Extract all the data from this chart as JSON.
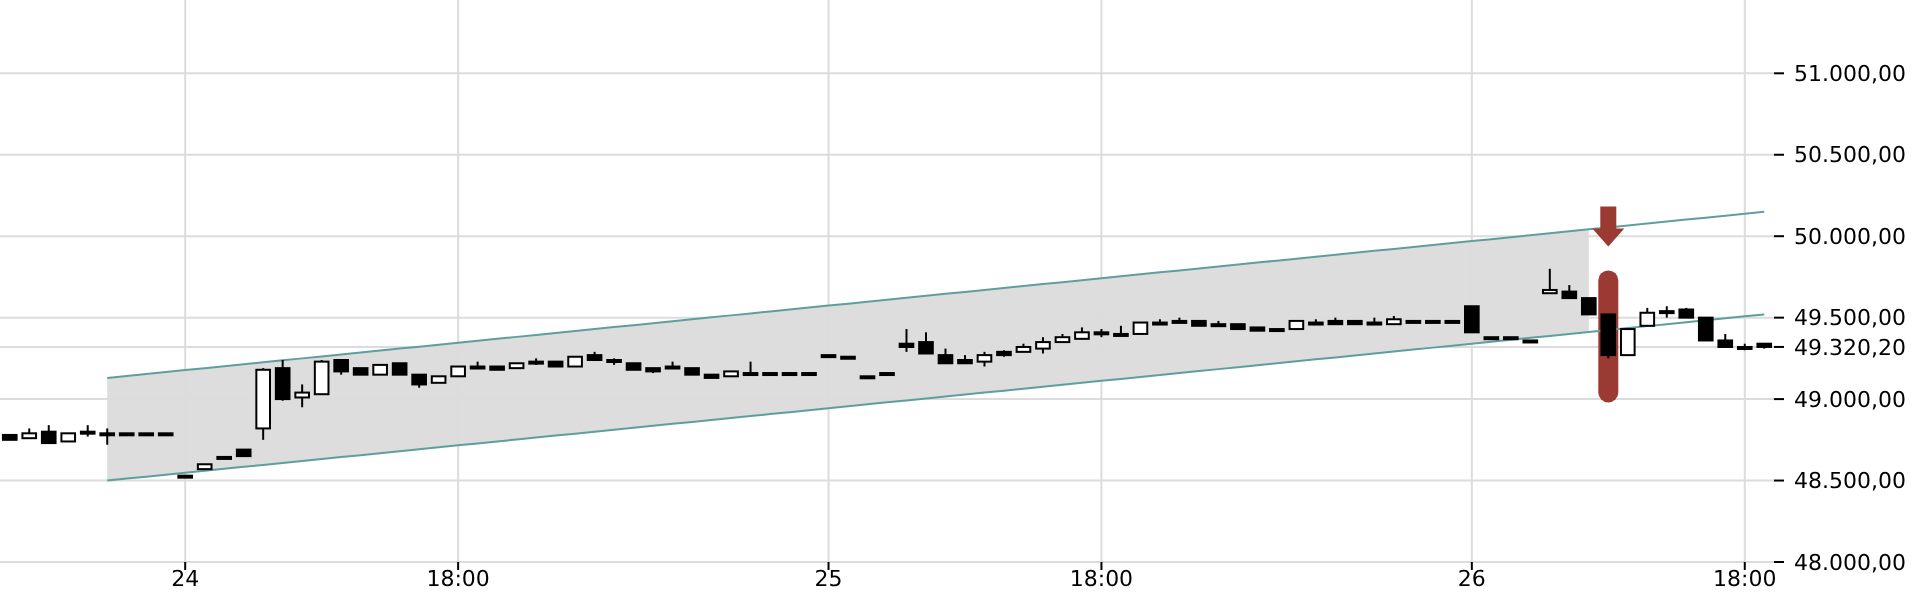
{
  "chart_data": {
    "type": "candlestick",
    "categories": [
      null,
      null,
      null,
      null,
      null,
      null,
      null,
      null,
      null,
      "24",
      null,
      null,
      null,
      null,
      null,
      null,
      null,
      null,
      null,
      null,
      null,
      null,
      null,
      "18:00",
      null,
      null,
      null,
      null,
      null,
      null,
      null,
      null,
      null,
      null,
      null,
      null,
      null,
      null,
      null,
      null,
      null,
      null,
      "25",
      null,
      null,
      null,
      null,
      null,
      null,
      null,
      null,
      null,
      null,
      null,
      null,
      null,
      "18:00",
      null,
      null,
      null,
      null,
      null,
      null,
      null,
      null,
      null,
      null,
      null,
      null,
      null,
      null,
      null,
      null,
      null,
      null,
      "26",
      null,
      null,
      null,
      null,
      null,
      null,
      null,
      null,
      null,
      null,
      null,
      null,
      null,
      "18:00",
      null
    ],
    "ylim": [
      48000,
      51450
    ],
    "yticks": [
      {
        "value": 48000,
        "label": "48.000,00"
      },
      {
        "value": 48500,
        "label": "48.500,00"
      },
      {
        "value": 49000,
        "label": "49.000,00"
      },
      {
        "value": 49320.2,
        "label": "49.320,20"
      },
      {
        "value": 49500,
        "label": "49.500,00"
      },
      {
        "value": 50000,
        "label": "50.000,00"
      },
      {
        "value": 50500,
        "label": "50.500,00"
      },
      {
        "value": 51000,
        "label": "51.000,00"
      }
    ],
    "grid": true,
    "series": [
      {
        "type": "line",
        "color": "#5f9ea0",
        "values": [
          null,
          null,
          null,
          null,
          null,
          49130,
          49142,
          49154,
          49166,
          49178,
          49190,
          49202,
          49214,
          49226,
          49238,
          49250,
          49262,
          49274,
          49286,
          49298,
          49310,
          49322,
          49334,
          49346,
          49358,
          49370,
          49382,
          49394,
          49406,
          49418,
          49430,
          49442,
          49454,
          49466,
          49478,
          49490,
          49502,
          49514,
          49526,
          49538,
          49550,
          49562,
          49574,
          49586,
          49598,
          49610,
          49622,
          49634,
          49646,
          49658,
          49670,
          49682,
          49694,
          49706,
          49718,
          49730,
          49742,
          49754,
          49766,
          49778,
          49790,
          49802,
          49814,
          49826,
          49838,
          49850,
          49862,
          49874,
          49886,
          49898,
          49910,
          49922,
          49934,
          49946,
          49958,
          49970,
          49982,
          49994,
          50006,
          50018,
          50030,
          50042,
          50054,
          50066,
          50078,
          50090,
          50102,
          50114,
          50126,
          50138,
          50150
        ],
        "upper": [
          null,
          null,
          null,
          null,
          null,
          49130,
          49142,
          49154,
          49166,
          49178,
          49190,
          49202,
          49214,
          49226,
          49238,
          49250,
          49262,
          49274,
          49286,
          49298,
          49310,
          49322,
          49334,
          49346,
          49358,
          49370,
          49382,
          49394,
          49406,
          49418,
          49430,
          49442,
          49454,
          49466,
          49478,
          49490,
          49502,
          49514,
          49526,
          49538,
          49550,
          49562,
          49574,
          49586,
          49598,
          49610,
          49622,
          49634,
          49646,
          49658,
          49670,
          49682,
          49694,
          49706,
          49718,
          49730,
          49742,
          49754,
          49766,
          49778,
          49790,
          49802,
          49814,
          49826,
          49838,
          49850,
          49862,
          49874,
          49886,
          49898,
          49910,
          49922,
          49934,
          49946,
          49958,
          49970,
          49982,
          49994,
          50006,
          50018,
          50030,
          50042,
          null,
          null,
          null,
          null,
          null,
          null,
          null,
          null,
          null
        ],
        "lower": [
          null,
          null,
          null,
          null,
          null,
          48500,
          48512,
          48524,
          48536,
          48548,
          48560,
          48572,
          48584,
          48596,
          48608,
          48620,
          48632,
          48644,
          48656,
          48668,
          48680,
          48692,
          48704,
          48716,
          48728,
          48740,
          48752,
          48764,
          48776,
          48788,
          48800,
          48812,
          48824,
          48836,
          48848,
          48860,
          48872,
          48884,
          48896,
          48908,
          48920,
          48932,
          48944,
          48956,
          48968,
          48980,
          48992,
          49004,
          49016,
          49028,
          49040,
          49052,
          49064,
          49076,
          49088,
          49100,
          49112,
          49124,
          49136,
          49148,
          49160,
          49172,
          49184,
          49196,
          49208,
          49220,
          49232,
          49244,
          49256,
          49268,
          49280,
          49292,
          49304,
          49316,
          49328,
          49340,
          49352,
          49364,
          49376,
          49388,
          49400,
          49412,
          null,
          null,
          null,
          null,
          null,
          null,
          null,
          null,
          null
        ]
      },
      {
        "type": "line",
        "color": "#5f9ea0",
        "values": [
          null,
          null,
          null,
          null,
          null,
          48500,
          48512,
          48524,
          48536,
          48548,
          48560,
          48572,
          48584,
          48596,
          48608,
          48620,
          48632,
          48644,
          48656,
          48668,
          48680,
          48692,
          48704,
          48716,
          48728,
          48740,
          48752,
          48764,
          48776,
          48788,
          48800,
          48812,
          48824,
          48836,
          48848,
          48860,
          48872,
          48884,
          48896,
          48908,
          48920,
          48932,
          48944,
          48956,
          48968,
          48980,
          48992,
          49004,
          49016,
          49028,
          49040,
          49052,
          49064,
          49076,
          49088,
          49100,
          49112,
          49124,
          49136,
          49148,
          49160,
          49172,
          49184,
          49196,
          49208,
          49220,
          49232,
          49244,
          49256,
          49268,
          49280,
          49292,
          49304,
          49316,
          49328,
          49340,
          49352,
          49364,
          49376,
          49388,
          49400,
          49412,
          49424,
          49436,
          49448,
          49460,
          49472,
          49484,
          49496,
          49508,
          49520
        ]
      },
      {
        "color": "#000000",
        "ohlc": [
          [
            48780,
            48780,
            48750,
            48750
          ],
          [
            48760,
            48820,
            48760,
            48790
          ],
          [
            48800,
            48840,
            48730,
            48730
          ],
          [
            48740,
            48790,
            48740,
            48790
          ],
          [
            48800,
            48840,
            48770,
            48800
          ],
          [
            48790,
            48820,
            48720,
            48780
          ],
          [
            48790,
            48790,
            48790,
            48790
          ],
          [
            48790,
            48790,
            48790,
            48790
          ],
          [
            48790,
            48790,
            48790,
            48790
          ],
          [
            48530,
            48530,
            48530,
            48530
          ],
          [
            48570,
            48600,
            48570,
            48600
          ],
          [
            48645,
            48645,
            48645,
            48645
          ],
          [
            48690,
            48690,
            48650,
            48650
          ],
          [
            48820,
            49190,
            48750,
            49180
          ],
          [
            49190,
            49240,
            48990,
            49000
          ],
          [
            49010,
            49090,
            48950,
            49040
          ],
          [
            49030,
            49240,
            49030,
            49230
          ],
          [
            49240,
            49240,
            49150,
            49170
          ],
          [
            49190,
            49190,
            49150,
            49150
          ],
          [
            49150,
            49210,
            49150,
            49210
          ],
          [
            49220,
            49220,
            49150,
            49150
          ],
          [
            49150,
            49150,
            49070,
            49090
          ],
          [
            49100,
            49140,
            49100,
            49140
          ],
          [
            49140,
            49200,
            49140,
            49200
          ],
          [
            49200,
            49230,
            49200,
            49200
          ],
          [
            49200,
            49200,
            49180,
            49180
          ],
          [
            49190,
            49220,
            49190,
            49220
          ],
          [
            49230,
            49250,
            49210,
            49220
          ],
          [
            49230,
            49230,
            49200,
            49200
          ],
          [
            49200,
            49260,
            49200,
            49260
          ],
          [
            49270,
            49290,
            49240,
            49240
          ],
          [
            49240,
            49250,
            49210,
            49230
          ],
          [
            49220,
            49220,
            49180,
            49180
          ],
          [
            49190,
            49190,
            49160,
            49170
          ],
          [
            49200,
            49230,
            49200,
            49200
          ],
          [
            49190,
            49190,
            49150,
            49150
          ],
          [
            49150,
            49150,
            49130,
            49130
          ],
          [
            49140,
            49170,
            49140,
            49170
          ],
          [
            49160,
            49230,
            49160,
            49160
          ],
          [
            49160,
            49160,
            49160,
            49160
          ],
          [
            49160,
            49160,
            49160,
            49160
          ],
          [
            49160,
            49160,
            49160,
            49160
          ],
          [
            49270,
            49270,
            49270,
            49270
          ],
          [
            49260,
            49260,
            49260,
            49260
          ],
          [
            49140,
            49140,
            49140,
            49140
          ],
          [
            49160,
            49160,
            49160,
            49160
          ],
          [
            49340,
            49430,
            49290,
            49320
          ],
          [
            49350,
            49410,
            49280,
            49280
          ],
          [
            49270,
            49310,
            49220,
            49220
          ],
          [
            49240,
            49270,
            49220,
            49220
          ],
          [
            49230,
            49290,
            49200,
            49270
          ],
          [
            49290,
            49300,
            49260,
            49270
          ],
          [
            49290,
            49340,
            49290,
            49320
          ],
          [
            49310,
            49380,
            49280,
            49350
          ],
          [
            49350,
            49400,
            49350,
            49380
          ],
          [
            49370,
            49440,
            49370,
            49410
          ],
          [
            49400,
            49430,
            49380,
            49410
          ],
          [
            49400,
            49450,
            49400,
            49400
          ],
          [
            49400,
            49470,
            49400,
            49470
          ],
          [
            49470,
            49490,
            49470,
            49470
          ],
          [
            49480,
            49500,
            49470,
            49480
          ],
          [
            49480,
            49480,
            49450,
            49450
          ],
          [
            49460,
            49480,
            49460,
            49460
          ],
          [
            49460,
            49460,
            49430,
            49430
          ],
          [
            49440,
            49440,
            49420,
            49420
          ],
          [
            49430,
            49430,
            49430,
            49430
          ],
          [
            49430,
            49480,
            49430,
            49480
          ],
          [
            49470,
            49490,
            49470,
            49470
          ],
          [
            49480,
            49500,
            49460,
            49460
          ],
          [
            49480,
            49480,
            49460,
            49460
          ],
          [
            49470,
            49500,
            49470,
            49470
          ],
          [
            49460,
            49510,
            49460,
            49490
          ],
          [
            49480,
            49480,
            49480,
            49480
          ],
          [
            49480,
            49480,
            49480,
            49480
          ],
          [
            49480,
            49480,
            49480,
            49480
          ],
          [
            49570,
            49570,
            49410,
            49410
          ],
          [
            49380,
            49380,
            49380,
            49380
          ],
          [
            49380,
            49380,
            49380,
            49380
          ],
          [
            49360,
            49360,
            49360,
            49360
          ],
          [
            49650,
            49800,
            49650,
            49670
          ],
          [
            49660,
            49700,
            49620,
            49620
          ],
          [
            49620,
            49620,
            49520,
            49520
          ],
          [
            49520,
            49520,
            49250,
            49270
          ],
          [
            49270,
            49430,
            49270,
            49430
          ],
          [
            49450,
            49560,
            49450,
            49530
          ],
          [
            49540,
            49570,
            49500,
            49540
          ],
          [
            49550,
            49560,
            49500,
            49500
          ],
          [
            49500,
            49500,
            49360,
            49360
          ],
          [
            49360,
            49400,
            49320,
            49320
          ],
          [
            49320,
            49340,
            49300,
            49320
          ],
          [
            49340,
            49340,
            49310,
            49320.2
          ]
        ]
      }
    ]
  }
}
